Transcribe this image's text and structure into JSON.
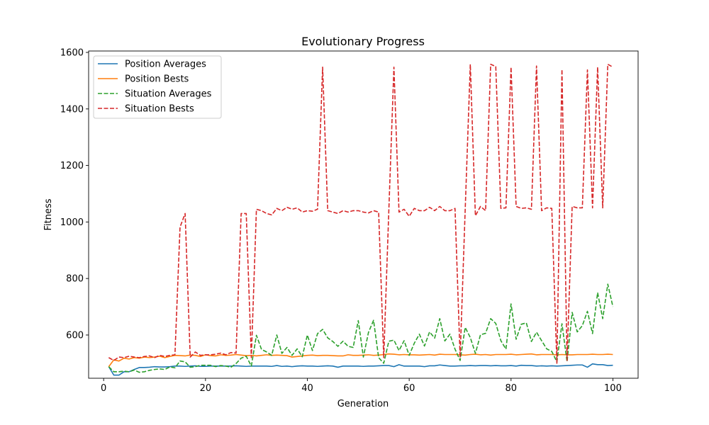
{
  "chart_data": {
    "type": "line",
    "title": "Evolutionary Progress",
    "xlabel": "Generation",
    "ylabel": "Fitness",
    "xlim": [
      -2.95,
      104.95
    ],
    "ylim": [
      447,
      1605
    ],
    "xticks": [
      0,
      20,
      40,
      60,
      80,
      100
    ],
    "yticks": [
      600,
      800,
      1000,
      1200,
      1400,
      1600
    ],
    "grid": false,
    "legend_position": "top-left",
    "x": [
      1,
      2,
      3,
      4,
      5,
      6,
      7,
      8,
      9,
      10,
      11,
      12,
      13,
      14,
      15,
      16,
      17,
      18,
      19,
      20,
      21,
      22,
      23,
      24,
      25,
      26,
      27,
      28,
      29,
      30,
      31,
      32,
      33,
      34,
      35,
      36,
      37,
      38,
      39,
      40,
      41,
      42,
      43,
      44,
      45,
      46,
      47,
      48,
      49,
      50,
      51,
      52,
      53,
      54,
      55,
      56,
      57,
      58,
      59,
      60,
      61,
      62,
      63,
      64,
      65,
      66,
      67,
      68,
      69,
      70,
      71,
      72,
      73,
      74,
      75,
      76,
      77,
      78,
      79,
      80,
      81,
      82,
      83,
      84,
      85,
      86,
      87,
      88,
      89,
      90,
      91,
      92,
      93,
      94,
      95,
      96,
      97,
      98,
      99,
      100
    ],
    "series": [
      {
        "name": "Position Averages",
        "color": "#1f77b4",
        "dash": "solid",
        "values": [
          488,
          458,
          458,
          470,
          470,
          478,
          485,
          485,
          486,
          488,
          487,
          487,
          488,
          490,
          490,
          489,
          490,
          491,
          489,
          489,
          490,
          490,
          490,
          490,
          490,
          491,
          490,
          489,
          490,
          490,
          490,
          490,
          489,
          492,
          489,
          490,
          488,
          490,
          491,
          490,
          490,
          489,
          490,
          491,
          490,
          486,
          490,
          490,
          490,
          490,
          489,
          490,
          490,
          491,
          492,
          492,
          488,
          495,
          490,
          490,
          490,
          490,
          488,
          491,
          491,
          494,
          492,
          490,
          490,
          491,
          491,
          492,
          491,
          492,
          492,
          491,
          492,
          491,
          491,
          492,
          490,
          493,
          492,
          492,
          490,
          491,
          490,
          491,
          490,
          491,
          492,
          493,
          494,
          494,
          486,
          498,
          495,
          495,
          492,
          493
        ]
      },
      {
        "name": "Position Bests",
        "color": "#ff7f0e",
        "dash": "solid",
        "values": [
          488,
          512,
          508,
          518,
          515,
          520,
          518,
          522,
          520,
          522,
          525,
          520,
          524,
          528,
          527,
          526,
          529,
          528,
          524,
          530,
          527,
          526,
          530,
          528,
          529,
          531,
          529,
          527,
          528,
          526,
          528,
          530,
          528,
          529,
          528,
          527,
          522,
          524,
          526,
          528,
          529,
          527,
          528,
          528,
          527,
          526,
          526,
          530,
          528,
          528,
          529,
          530,
          528,
          529,
          531,
          533,
          532,
          530,
          531,
          530,
          530,
          529,
          530,
          531,
          529,
          532,
          531,
          531,
          531,
          530,
          529,
          531,
          532,
          530,
          531,
          529,
          531,
          531,
          531,
          532,
          530,
          531,
          532,
          533,
          530,
          531,
          531,
          531,
          530,
          531,
          530,
          530,
          531,
          531,
          531,
          532,
          531,
          531,
          532,
          531
        ]
      },
      {
        "name": "Situation Averages",
        "color": "#2ca02c",
        "dash": "dashed",
        "values": [
          488,
          470,
          470,
          472,
          470,
          476,
          468,
          470,
          475,
          478,
          480,
          478,
          487,
          484,
          508,
          505,
          486,
          488,
          493,
          493,
          493,
          488,
          492,
          490,
          486,
          499,
          518,
          525,
          490,
          599,
          549,
          540,
          528,
          600,
          535,
          556,
          528,
          551,
          523,
          600,
          545,
          605,
          620,
          590,
          577,
          560,
          578,
          560,
          556,
          651,
          522,
          609,
          652,
          520,
          500,
          578,
          582,
          545,
          580,
          528,
          571,
          603,
          561,
          611,
          589,
          658,
          579,
          603,
          550,
          510,
          627,
          591,
          535,
          601,
          606,
          658,
          641,
          580,
          550,
          710,
          585,
          638,
          643,
          577,
          610,
          580,
          551,
          542,
          505,
          640,
          505,
          680,
          611,
          633,
          684,
          605,
          750,
          658,
          780,
          700
        ]
      },
      {
        "name": "Situation Bests",
        "color": "#d62728",
        "dash": "dashed",
        "values": [
          520,
          510,
          522,
          520,
          525,
          522,
          520,
          524,
          526,
          520,
          528,
          524,
          528,
          530,
          982,
          1030,
          522,
          540,
          528,
          530,
          530,
          532,
          536,
          530,
          538,
          536,
          1030,
          1030,
          520,
          1045,
          1040,
          1030,
          1025,
          1048,
          1040,
          1052,
          1045,
          1050,
          1035,
          1040,
          1038,
          1045,
          1548,
          1040,
          1035,
          1030,
          1040,
          1035,
          1040,
          1040,
          1035,
          1032,
          1040,
          1035,
          520,
          1040,
          1548,
          1035,
          1045,
          1020,
          1048,
          1040,
          1040,
          1052,
          1040,
          1055,
          1040,
          1040,
          1048,
          520,
          1045,
          1558,
          1022,
          1055,
          1040,
          1558,
          1550,
          1048,
          1050,
          1548,
          1055,
          1048,
          1050,
          1045,
          1552,
          1040,
          1050,
          1048,
          500,
          1540,
          510,
          1055,
          1050,
          1050,
          1538,
          1050,
          1548,
          1050,
          1558,
          1548
        ]
      }
    ]
  }
}
